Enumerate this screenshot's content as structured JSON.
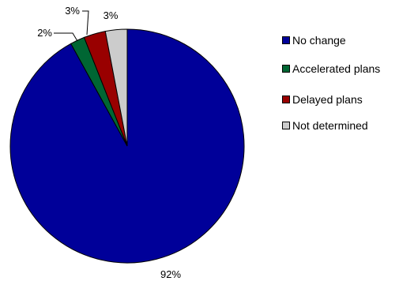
{
  "chart_data": {
    "type": "pie",
    "title": "",
    "slices": [
      {
        "name": "No change",
        "value": 92,
        "label": "92%",
        "color": "#000099"
      },
      {
        "name": "Accelerated plans",
        "value": 2,
        "label": "2%",
        "color": "#006633"
      },
      {
        "name": "Delayed plans",
        "value": 3,
        "label": "3%",
        "color": "#990000"
      },
      {
        "name": "Not determined",
        "value": 3,
        "label": "3%",
        "color": "#cccccc"
      }
    ],
    "start": "12 o'clock",
    "direction": "clockwise",
    "legend": "right"
  }
}
